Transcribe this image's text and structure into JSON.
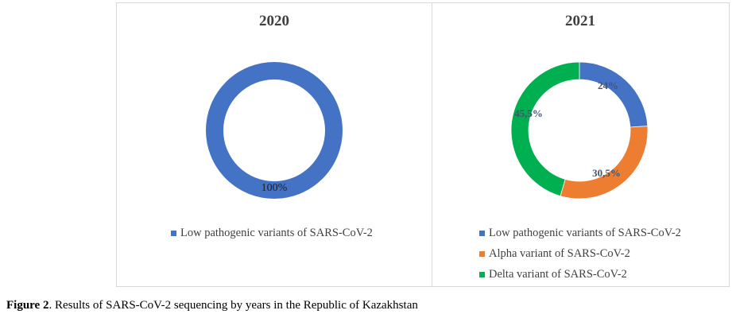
{
  "chart_data": [
    {
      "type": "pie",
      "donut": true,
      "title": "2020",
      "categories": [
        "Low pathogenic variants of SARS-CoV-2"
      ],
      "values": [
        100
      ],
      "labels": [
        "100%"
      ],
      "colors": [
        "#4472c4"
      ],
      "legend": "bottom"
    },
    {
      "type": "pie",
      "donut": true,
      "title": "2021",
      "categories": [
        "Low pathogenic variants of SARS-CoV-2",
        "Alpha variant of SARS-CoV-2",
        "Delta variant of SARS-CoV-2"
      ],
      "values": [
        24,
        30.5,
        45.5
      ],
      "labels": [
        "24%",
        "30,5%",
        "45,5%"
      ],
      "colors": [
        "#4472c4",
        "#ed7d31",
        "#00b050"
      ],
      "legend": "bottom"
    }
  ],
  "caption": {
    "label": "Figure 2",
    "text": ". Results of SARS-CoV-2 sequencing by years in the Republic of Kazakhstan"
  }
}
